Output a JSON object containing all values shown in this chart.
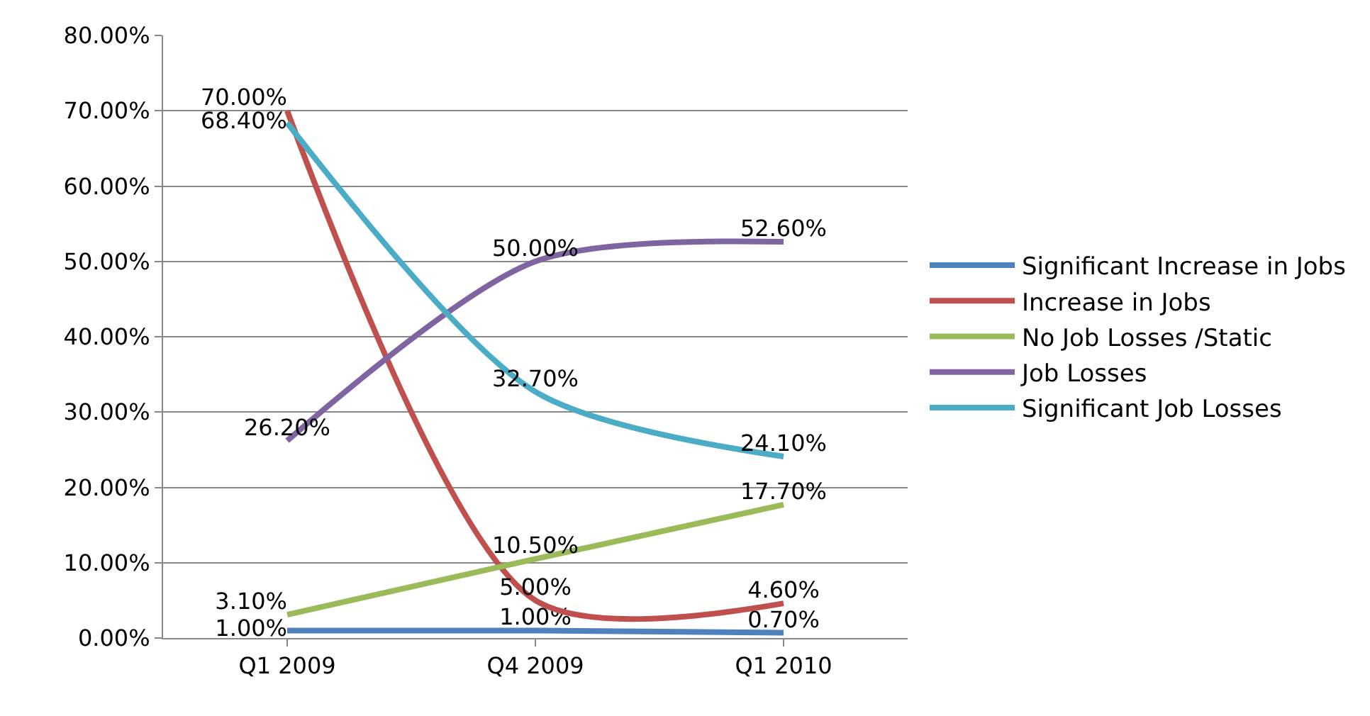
{
  "chart_data": {
    "type": "line",
    "categories": [
      "Q1 2009",
      "Q4 2009",
      "Q1 2010"
    ],
    "series": [
      {
        "name": "Significant Increase in Jobs",
        "color": "#4f81bd",
        "values": [
          1.0,
          1.0,
          0.7
        ],
        "value_labels": [
          "1.00%",
          "1.00%",
          "0.70%"
        ]
      },
      {
        "name": "Increase in Jobs",
        "color": "#c0504d",
        "values": [
          70.0,
          5.0,
          4.6
        ],
        "value_labels": [
          "70.00%",
          "5.00%",
          "4.60%"
        ]
      },
      {
        "name": "No Job Losses /Static",
        "color": "#9bbb59",
        "values": [
          3.1,
          10.5,
          17.7
        ],
        "value_labels": [
          "3.10%",
          "10.50%",
          "17.70%"
        ]
      },
      {
        "name": "Job Losses",
        "color": "#8064a2",
        "values": [
          26.2,
          50.0,
          52.6
        ],
        "value_labels": [
          "26.20%",
          "50.00%",
          "52.60%"
        ]
      },
      {
        "name": "Significant Job Losses",
        "color": "#4bacc6",
        "values": [
          68.4,
          32.7,
          24.1
        ],
        "value_labels": [
          "68.40%",
          "32.70%",
          "24.10%"
        ]
      }
    ],
    "ylim": [
      0,
      80
    ],
    "yticks": [
      {
        "value": 0,
        "label": "0.00%"
      },
      {
        "value": 10,
        "label": "10.00%"
      },
      {
        "value": 20,
        "label": "20.00%"
      },
      {
        "value": 30,
        "label": "30.00%"
      },
      {
        "value": 40,
        "label": "40.00%"
      },
      {
        "value": 50,
        "label": "50.00%"
      },
      {
        "value": 60,
        "label": "60.00%"
      },
      {
        "value": 70,
        "label": "70.00%"
      },
      {
        "value": 80,
        "label": "80.00%"
      }
    ],
    "grid": "y",
    "legend": "right",
    "marker": "none",
    "line_style": "solid"
  }
}
